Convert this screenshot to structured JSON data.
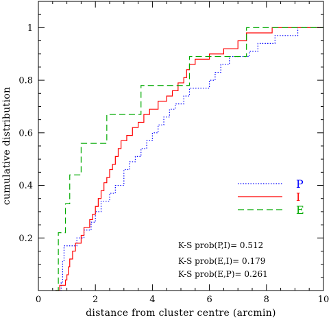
{
  "chart_data": {
    "type": "line",
    "title": "",
    "xlabel": "distance from cluster centre (arcmin)",
    "ylabel": "cumulative distribution",
    "xlim": [
      0,
      10
    ],
    "ylim": [
      0,
      1.1
    ],
    "xticks": [
      0,
      2,
      4,
      6,
      8,
      10
    ],
    "yticks": [
      0.2,
      0.4,
      0.6,
      0.8,
      1
    ],
    "xtick_labels": [
      "0",
      "2",
      "4",
      "6",
      "8",
      "10"
    ],
    "ytick_labels": [
      "0.2",
      "0.4",
      "0.6",
      "0.8",
      "1"
    ],
    "grid": false,
    "legend_position": "right",
    "series": [
      {
        "name": "P",
        "color": "#0000ff",
        "dash": "dotted",
        "steps": [
          [
            0.6,
            0.0
          ],
          [
            0.8,
            0.03
          ],
          [
            0.85,
            0.11
          ],
          [
            0.9,
            0.17
          ],
          [
            1.2,
            0.17
          ],
          [
            1.35,
            0.2
          ],
          [
            1.6,
            0.23
          ],
          [
            1.85,
            0.26
          ],
          [
            2.0,
            0.3
          ],
          [
            2.2,
            0.34
          ],
          [
            2.5,
            0.37
          ],
          [
            2.7,
            0.4
          ],
          [
            3.0,
            0.46
          ],
          [
            3.2,
            0.49
          ],
          [
            3.4,
            0.51
          ],
          [
            3.6,
            0.54
          ],
          [
            3.8,
            0.57
          ],
          [
            4.0,
            0.6
          ],
          [
            4.2,
            0.63
          ],
          [
            4.4,
            0.66
          ],
          [
            4.6,
            0.69
          ],
          [
            4.8,
            0.71
          ],
          [
            5.1,
            0.74
          ],
          [
            5.3,
            0.77
          ],
          [
            6.0,
            0.8
          ],
          [
            6.2,
            0.83
          ],
          [
            6.4,
            0.86
          ],
          [
            6.7,
            0.89
          ],
          [
            7.4,
            0.91
          ],
          [
            7.7,
            0.94
          ],
          [
            8.3,
            0.97
          ],
          [
            9.1,
            1.0
          ],
          [
            10.0,
            1.0
          ]
        ]
      },
      {
        "name": "I",
        "color": "#ff0000",
        "dash": "solid",
        "steps": [
          [
            0.6,
            0.0
          ],
          [
            0.75,
            0.02
          ],
          [
            0.95,
            0.04
          ],
          [
            1.0,
            0.06
          ],
          [
            1.05,
            0.09
          ],
          [
            1.1,
            0.12
          ],
          [
            1.2,
            0.15
          ],
          [
            1.3,
            0.18
          ],
          [
            1.5,
            0.21
          ],
          [
            1.6,
            0.24
          ],
          [
            1.8,
            0.27
          ],
          [
            1.9,
            0.29
          ],
          [
            2.0,
            0.32
          ],
          [
            2.1,
            0.35
          ],
          [
            2.2,
            0.38
          ],
          [
            2.3,
            0.41
          ],
          [
            2.4,
            0.43
          ],
          [
            2.5,
            0.46
          ],
          [
            2.6,
            0.48
          ],
          [
            2.7,
            0.51
          ],
          [
            2.8,
            0.54
          ],
          [
            2.9,
            0.57
          ],
          [
            3.1,
            0.59
          ],
          [
            3.3,
            0.62
          ],
          [
            3.5,
            0.64
          ],
          [
            3.7,
            0.67
          ],
          [
            3.9,
            0.69
          ],
          [
            4.2,
            0.72
          ],
          [
            4.5,
            0.74
          ],
          [
            4.7,
            0.76
          ],
          [
            4.9,
            0.79
          ],
          [
            5.1,
            0.81
          ],
          [
            5.2,
            0.84
          ],
          [
            5.3,
            0.86
          ],
          [
            5.5,
            0.88
          ],
          [
            6.0,
            0.9
          ],
          [
            6.5,
            0.92
          ],
          [
            7.0,
            0.95
          ],
          [
            7.3,
            0.98
          ],
          [
            8.2,
            1.0
          ],
          [
            10.0,
            1.0
          ]
        ]
      },
      {
        "name": "E",
        "color": "#00aa00",
        "dash": "dashed",
        "steps": [
          [
            0.6,
            0.0
          ],
          [
            0.7,
            0.22
          ],
          [
            0.95,
            0.33
          ],
          [
            1.0,
            0.33
          ],
          [
            1.1,
            0.44
          ],
          [
            1.5,
            0.56
          ],
          [
            2.4,
            0.67
          ],
          [
            3.6,
            0.78
          ],
          [
            5.3,
            0.89
          ],
          [
            7.3,
            1.0
          ],
          [
            10.0,
            1.0
          ]
        ]
      }
    ],
    "annotations": [
      "K-S prob(P,I)= 0.512",
      "K-S prob(E,I)= 0.179",
      "K-S prob(E,P)= 0.261"
    ]
  }
}
